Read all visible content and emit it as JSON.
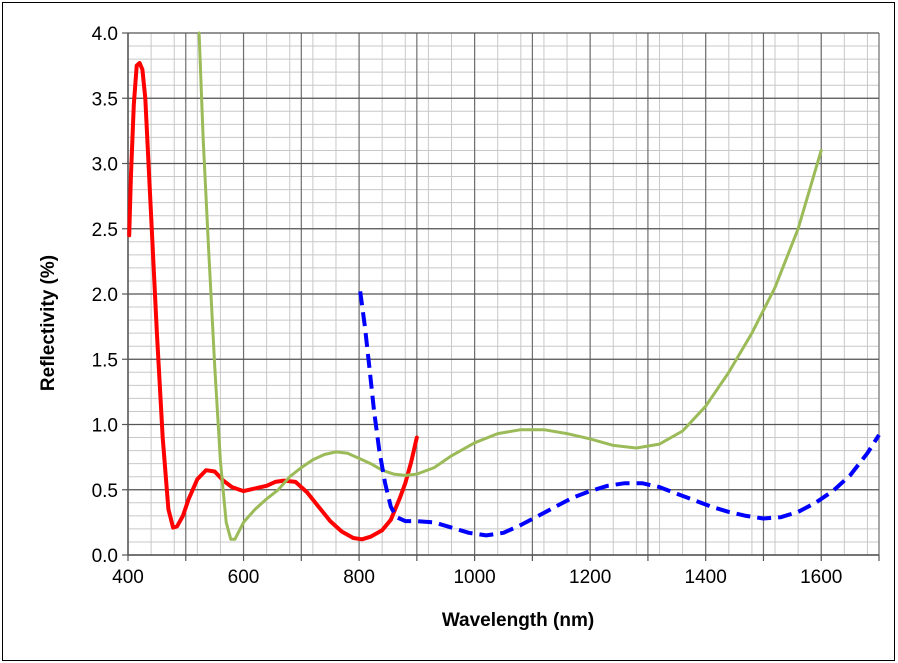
{
  "chart_data": {
    "type": "line",
    "xlabel": "Wavelength (nm)",
    "ylabel": "Reflectivity (%)",
    "xlim": [
      400,
      1700
    ],
    "ylim": [
      0,
      4.0
    ],
    "xticks": [
      "400",
      "600",
      "800",
      "1000",
      "1200",
      "1400",
      "1600"
    ],
    "yticks": [
      "0.0",
      "0.5",
      "1.0",
      "1.5",
      "2.0",
      "2.5",
      "3.0",
      "3.5",
      "4.0"
    ],
    "xtick_values": [
      400,
      600,
      800,
      1000,
      1200,
      1400,
      1600
    ],
    "ytick_values": [
      0,
      0.5,
      1.0,
      1.5,
      2.0,
      2.5,
      3.0,
      3.5,
      4.0
    ],
    "grid": true,
    "minor_grid_x_step": 40,
    "minor_grid_y_step": 0.1,
    "series": [
      {
        "color": "#ff0000",
        "style": "solid",
        "width": 4,
        "points": [
          [
            402,
            2.45
          ],
          [
            405,
            2.9
          ],
          [
            410,
            3.45
          ],
          [
            415,
            3.75
          ],
          [
            420,
            3.77
          ],
          [
            425,
            3.72
          ],
          [
            430,
            3.5
          ],
          [
            440,
            2.6
          ],
          [
            450,
            1.7
          ],
          [
            460,
            0.9
          ],
          [
            470,
            0.35
          ],
          [
            478,
            0.21
          ],
          [
            485,
            0.22
          ],
          [
            495,
            0.3
          ],
          [
            505,
            0.43
          ],
          [
            520,
            0.58
          ],
          [
            535,
            0.65
          ],
          [
            550,
            0.64
          ],
          [
            565,
            0.57
          ],
          [
            580,
            0.52
          ],
          [
            600,
            0.49
          ],
          [
            620,
            0.51
          ],
          [
            640,
            0.53
          ],
          [
            655,
            0.56
          ],
          [
            670,
            0.57
          ],
          [
            690,
            0.56
          ],
          [
            710,
            0.48
          ],
          [
            730,
            0.37
          ],
          [
            750,
            0.26
          ],
          [
            770,
            0.18
          ],
          [
            790,
            0.13
          ],
          [
            805,
            0.12
          ],
          [
            820,
            0.14
          ],
          [
            840,
            0.19
          ],
          [
            855,
            0.27
          ],
          [
            870,
            0.43
          ],
          [
            880,
            0.55
          ],
          [
            890,
            0.71
          ],
          [
            900,
            0.9
          ]
        ]
      },
      {
        "color": "#9bbb59",
        "style": "solid",
        "width": 3,
        "points": [
          [
            523,
            4.0
          ],
          [
            530,
            3.2
          ],
          [
            540,
            2.3
          ],
          [
            550,
            1.45
          ],
          [
            560,
            0.72
          ],
          [
            570,
            0.25
          ],
          [
            578,
            0.12
          ],
          [
            585,
            0.12
          ],
          [
            600,
            0.25
          ],
          [
            620,
            0.35
          ],
          [
            640,
            0.43
          ],
          [
            660,
            0.5
          ],
          [
            680,
            0.6
          ],
          [
            700,
            0.67
          ],
          [
            720,
            0.73
          ],
          [
            740,
            0.77
          ],
          [
            760,
            0.79
          ],
          [
            780,
            0.78
          ],
          [
            800,
            0.74
          ],
          [
            820,
            0.7
          ],
          [
            840,
            0.65
          ],
          [
            860,
            0.62
          ],
          [
            880,
            0.61
          ],
          [
            900,
            0.62
          ],
          [
            930,
            0.67
          ],
          [
            960,
            0.76
          ],
          [
            1000,
            0.86
          ],
          [
            1040,
            0.93
          ],
          [
            1080,
            0.96
          ],
          [
            1120,
            0.96
          ],
          [
            1160,
            0.93
          ],
          [
            1200,
            0.89
          ],
          [
            1240,
            0.84
          ],
          [
            1280,
            0.82
          ],
          [
            1320,
            0.85
          ],
          [
            1360,
            0.95
          ],
          [
            1400,
            1.14
          ],
          [
            1440,
            1.4
          ],
          [
            1480,
            1.7
          ],
          [
            1520,
            2.05
          ],
          [
            1560,
            2.5
          ],
          [
            1600,
            3.1
          ]
        ]
      },
      {
        "color": "#0000ff",
        "style": "dashed",
        "width": 4,
        "points": [
          [
            802,
            2.02
          ],
          [
            810,
            1.75
          ],
          [
            818,
            1.43
          ],
          [
            826,
            1.1
          ],
          [
            835,
            0.8
          ],
          [
            845,
            0.55
          ],
          [
            855,
            0.37
          ],
          [
            865,
            0.29
          ],
          [
            880,
            0.26
          ],
          [
            900,
            0.26
          ],
          [
            930,
            0.25
          ],
          [
            960,
            0.21
          ],
          [
            990,
            0.17
          ],
          [
            1020,
            0.15
          ],
          [
            1050,
            0.17
          ],
          [
            1080,
            0.23
          ],
          [
            1110,
            0.3
          ],
          [
            1140,
            0.37
          ],
          [
            1170,
            0.44
          ],
          [
            1200,
            0.49
          ],
          [
            1230,
            0.53
          ],
          [
            1260,
            0.55
          ],
          [
            1290,
            0.55
          ],
          [
            1320,
            0.52
          ],
          [
            1350,
            0.47
          ],
          [
            1380,
            0.42
          ],
          [
            1410,
            0.37
          ],
          [
            1440,
            0.33
          ],
          [
            1470,
            0.3
          ],
          [
            1500,
            0.28
          ],
          [
            1530,
            0.29
          ],
          [
            1560,
            0.33
          ],
          [
            1590,
            0.4
          ],
          [
            1620,
            0.49
          ],
          [
            1650,
            0.61
          ],
          [
            1680,
            0.78
          ],
          [
            1700,
            0.92
          ]
        ]
      }
    ]
  }
}
